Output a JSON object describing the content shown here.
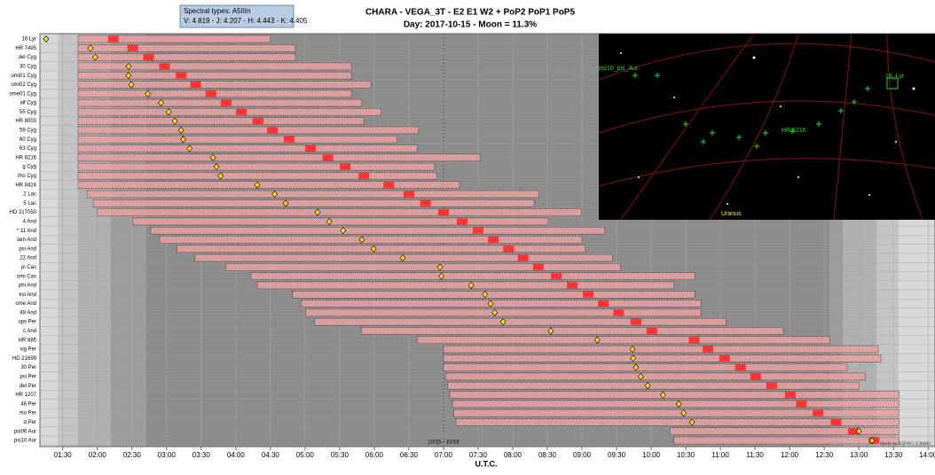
{
  "chart_data": {
    "type": "gantt",
    "title": "CHARA - VEGA_3T - E2 E1 W2 + PoP2 PoP1 PoP5",
    "subtitle": "Day: 2017-10-15 - Moon = 11.3%",
    "tooltip": [
      "Spectral types: A5IIIn",
      "V: 4.819 - J: 4.207 - H: 4.443 - K: 4.405"
    ],
    "x_label": "U.T.C.",
    "credit": "Made by ASPRO 2/JMMC",
    "date_change": {
      "value": 7,
      "label": "10/15 - 10/16"
    },
    "xlim": [
      1.17,
      14.1
    ],
    "xticks": [
      {
        "value": 1.5,
        "label": "01:30"
      },
      {
        "value": 2,
        "label": "02:00"
      },
      {
        "value": 2.5,
        "label": "02:30"
      },
      {
        "value": 3,
        "label": "03:00"
      },
      {
        "value": 3.5,
        "label": "03:30"
      },
      {
        "value": 4,
        "label": "04:00"
      },
      {
        "value": 4.5,
        "label": "04:30"
      },
      {
        "value": 5,
        "label": "05:00"
      },
      {
        "value": 5.5,
        "label": "05:30"
      },
      {
        "value": 6,
        "label": "06:00"
      },
      {
        "value": 6.5,
        "label": "06:30"
      },
      {
        "value": 7,
        "label": "07:00"
      },
      {
        "value": 7.5,
        "label": "07:30"
      },
      {
        "value": 8,
        "label": "08:00"
      },
      {
        "value": 8.5,
        "label": "08:30"
      },
      {
        "value": 9,
        "label": "09:00"
      },
      {
        "value": 9.5,
        "label": "09:30"
      },
      {
        "value": 10,
        "label": "10:00"
      },
      {
        "value": 10.5,
        "label": "10:30"
      },
      {
        "value": 11,
        "label": "11:00"
      },
      {
        "value": 11.5,
        "label": "11:30"
      },
      {
        "value": 12,
        "label": "12:00"
      },
      {
        "value": 12.5,
        "label": "12:30"
      },
      {
        "value": 13,
        "label": "13:00"
      },
      {
        "value": 13.5,
        "label": "13:30"
      },
      {
        "value": 14,
        "label": "14:00"
      }
    ],
    "categories": [
      "16 Lyr",
      "HR 7495",
      "del Cyg",
      "30 Cyg",
      "omi01 Cyg",
      "omi02 Cyg",
      "ome01 Cyg",
      "alf Cyg",
      "55 Cyg",
      "HR 8003",
      "59 Cyg",
      "60 Cyg",
      "63 Cyg",
      "HR 8216",
      "g Cyg",
      "rho Cyg",
      "HR 8424",
      "2 Lac",
      "5 Lac",
      "HD 217050",
      "4 And",
      "* 11 And",
      "lam And",
      "psi And",
      "22 And",
      "pi Cas",
      "omi Cas",
      "phi And",
      "ksi And",
      "ome And",
      "49 And",
      "ups Per",
      "c And",
      "HR 885",
      "sig Per",
      "HD 21699",
      "30 Per",
      "psi Per",
      "del Per",
      "HR 1207",
      "48 Per",
      "mu Per",
      "d Per",
      "psi06 Aur",
      "psi10 Aur"
    ],
    "starts": [
      1.72,
      1.72,
      1.72,
      1.72,
      1.72,
      1.72,
      1.72,
      1.72,
      1.72,
      1.72,
      1.72,
      1.72,
      1.72,
      1.72,
      1.72,
      1.72,
      1.72,
      1.85,
      1.94,
      2.0,
      2.51,
      2.77,
      2.9,
      3.15,
      3.41,
      3.86,
      4.22,
      4.31,
      4.82,
      4.95,
      5.01,
      5.14,
      5.81,
      6.62,
      7.0,
      7.0,
      7.0,
      7.03,
      7.06,
      7.09,
      7.13,
      7.15,
      7.18,
      10.27,
      10.33
    ],
    "ends": [
      4.5,
      4.86,
      4.86,
      5.67,
      5.67,
      5.95,
      5.67,
      5.82,
      6.1,
      5.85,
      6.64,
      6.33,
      6.62,
      7.53,
      6.87,
      6.9,
      7.23,
      8.38,
      8.31,
      8.99,
      8.51,
      9.33,
      9.0,
      9.05,
      9.44,
      9.56,
      10.63,
      10.33,
      10.63,
      10.72,
      10.72,
      11.08,
      11.91,
      12.58,
      13.28,
      13.32,
      12.83,
      13.09,
      13.0,
      13.58,
      13.58,
      13.58,
      13.58,
      13.58,
      13.58
    ],
    "transits": [
      1.26,
      1.9,
      1.97,
      2.45,
      2.45,
      2.49,
      2.73,
      2.92,
      3.03,
      3.12,
      3.21,
      3.24,
      3.33,
      3.67,
      3.72,
      3.78,
      4.31,
      4.56,
      4.72,
      5.18,
      5.35,
      5.55,
      5.82,
      5.99,
      6.41,
      6.95,
      6.97,
      7.4,
      7.6,
      7.68,
      7.74,
      7.86,
      8.55,
      9.22,
      9.73,
      9.74,
      9.78,
      9.85,
      9.95,
      10.17,
      10.4,
      10.47,
      10.59,
      13.0,
      13.19
    ],
    "highlights": [
      2.23,
      2.51,
      2.74,
      2.97,
      3.21,
      3.42,
      3.64,
      3.86,
      4.08,
      4.32,
      4.53,
      4.77,
      5.08,
      5.33,
      5.58,
      5.85,
      6.21,
      6.5,
      6.74,
      7.0,
      7.27,
      7.5,
      7.72,
      7.94,
      8.15,
      8.37,
      8.63,
      8.86,
      9.09,
      9.31,
      9.53,
      9.78,
      10.01,
      10.62,
      10.82,
      11.06,
      11.29,
      11.51,
      11.74,
      12.01,
      12.17,
      12.41,
      12.67,
      12.92,
      13.22
    ],
    "bar_color": "#e8a0a0",
    "highlight_color": "#ff3333",
    "transit_color": "#ffe020",
    "grid": true,
    "sky_map": {
      "labels": [
        "psi10_psi_Aur",
        "16_Lyr",
        "HR 8216",
        "Uranus"
      ]
    }
  }
}
